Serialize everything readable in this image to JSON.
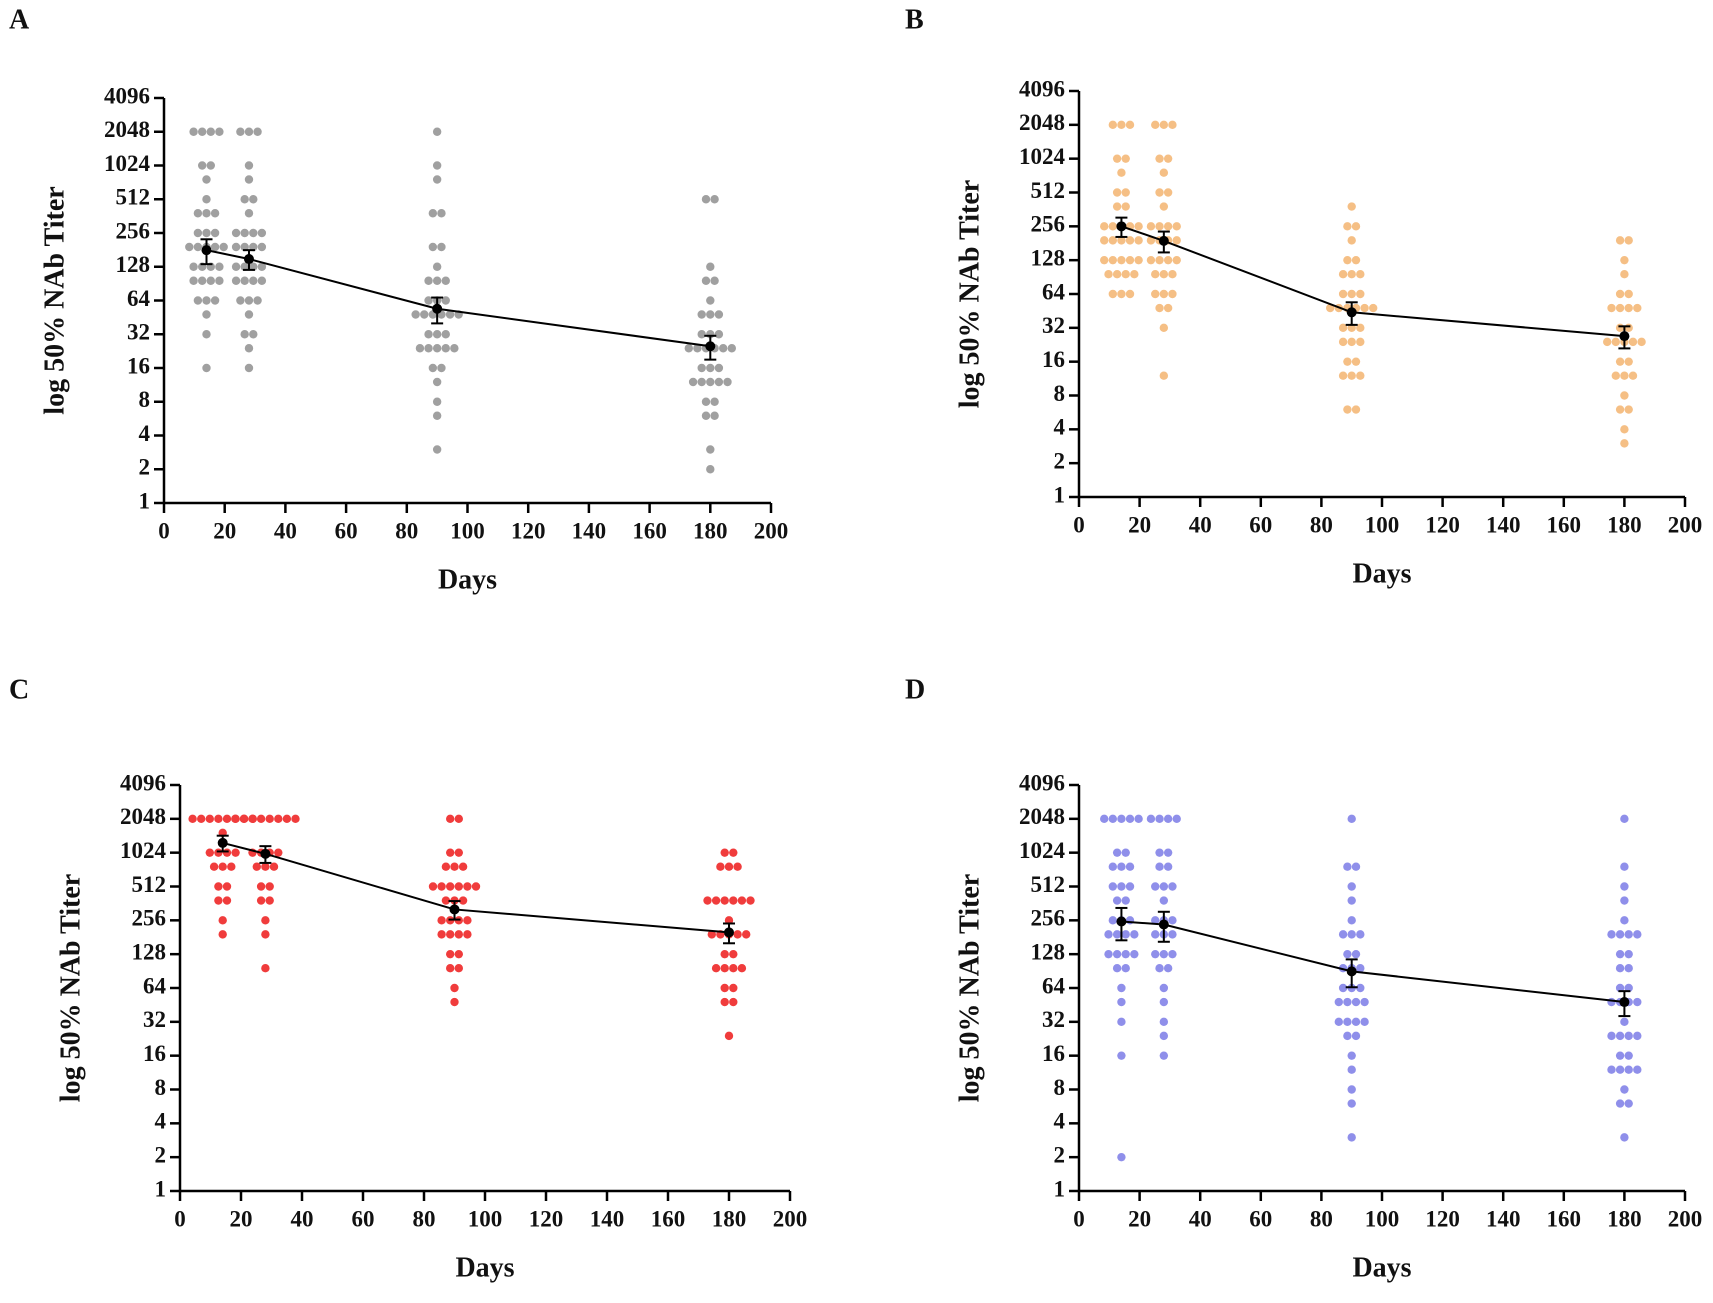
{
  "chart_data": [
    {
      "type": "scatter",
      "panel": "A",
      "ylabel": "log 50% NAb Titer",
      "xlabel": "Days",
      "color": "#a0a0a0",
      "log_scale": true,
      "xlim": [
        0,
        200
      ],
      "xticks": [
        0,
        20,
        40,
        60,
        80,
        100,
        120,
        140,
        160,
        180,
        200
      ],
      "ylim": [
        1,
        4096
      ],
      "yticks": [
        1,
        2,
        4,
        8,
        16,
        32,
        64,
        128,
        256,
        512,
        1024,
        2048,
        4096
      ],
      "groups": [
        {
          "x": 14,
          "values": [
            2048,
            2048,
            2048,
            2048,
            1024,
            1024,
            768,
            512,
            384,
            384,
            384,
            256,
            256,
            256,
            192,
            192,
            192,
            192,
            192,
            128,
            128,
            128,
            128,
            96,
            96,
            96,
            96,
            64,
            64,
            64,
            48,
            32,
            16
          ]
        },
        {
          "x": 28,
          "values": [
            2048,
            2048,
            2048,
            1024,
            768,
            512,
            512,
            384,
            256,
            256,
            256,
            256,
            192,
            192,
            192,
            192,
            128,
            128,
            128,
            128,
            96,
            96,
            96,
            96,
            64,
            64,
            64,
            48,
            32,
            32,
            24,
            16
          ]
        },
        {
          "x": 90,
          "values": [
            2048,
            1024,
            768,
            384,
            384,
            192,
            192,
            128,
            96,
            96,
            96,
            64,
            64,
            64,
            48,
            48,
            48,
            48,
            48,
            48,
            32,
            32,
            32,
            24,
            24,
            24,
            24,
            24,
            16,
            16,
            12,
            8,
            6,
            3
          ]
        },
        {
          "x": 180,
          "values": [
            512,
            512,
            128,
            96,
            96,
            64,
            48,
            48,
            48,
            32,
            32,
            32,
            24,
            24,
            24,
            24,
            24,
            24,
            16,
            16,
            16,
            12,
            12,
            12,
            12,
            12,
            8,
            8,
            6,
            6,
            3,
            2
          ]
        }
      ],
      "mean": {
        "x": [
          14,
          28,
          90,
          180
        ],
        "values": [
          180,
          150,
          54,
          25
        ],
        "errors": [
          45,
          30,
          14,
          6
        ]
      }
    },
    {
      "type": "scatter",
      "panel": "B",
      "ylabel": "log 50% NAb Titer",
      "xlabel": "Days",
      "color": "#f5bf85",
      "log_scale": true,
      "xlim": [
        0,
        200
      ],
      "xticks": [
        0,
        20,
        40,
        60,
        80,
        100,
        120,
        140,
        160,
        180,
        200
      ],
      "ylim": [
        1,
        4096
      ],
      "yticks": [
        1,
        2,
        4,
        8,
        16,
        32,
        64,
        128,
        256,
        512,
        1024,
        2048,
        4096
      ],
      "groups": [
        {
          "x": 14,
          "values": [
            2048,
            2048,
            2048,
            1024,
            1024,
            768,
            512,
            512,
            384,
            384,
            256,
            256,
            256,
            256,
            256,
            192,
            192,
            192,
            192,
            192,
            128,
            128,
            128,
            128,
            128,
            96,
            96,
            96,
            96,
            64,
            64,
            64
          ]
        },
        {
          "x": 28,
          "values": [
            2048,
            2048,
            2048,
            1024,
            1024,
            768,
            512,
            512,
            384,
            256,
            256,
            256,
            256,
            192,
            192,
            192,
            192,
            128,
            128,
            128,
            128,
            96,
            96,
            96,
            64,
            64,
            64,
            48,
            48,
            32,
            12
          ]
        },
        {
          "x": 90,
          "values": [
            384,
            256,
            256,
            192,
            128,
            128,
            96,
            96,
            96,
            64,
            64,
            64,
            48,
            48,
            48,
            48,
            48,
            48,
            32,
            32,
            32,
            24,
            24,
            24,
            16,
            16,
            12,
            12,
            12,
            6,
            6
          ]
        },
        {
          "x": 180,
          "values": [
            192,
            192,
            128,
            96,
            64,
            64,
            48,
            48,
            48,
            48,
            32,
            32,
            24,
            24,
            24,
            24,
            24,
            16,
            16,
            12,
            12,
            12,
            8,
            6,
            6,
            4,
            3
          ]
        }
      ],
      "mean": {
        "x": [
          14,
          28,
          90,
          180
        ],
        "values": [
          256,
          190,
          44,
          27
        ],
        "errors": [
          50,
          40,
          10,
          6
        ]
      }
    },
    {
      "type": "scatter",
      "panel": "C",
      "ylabel": "log 50% NAb Titer",
      "xlabel": "Days",
      "color": "#f03c3c",
      "log_scale": true,
      "xlim": [
        0,
        200
      ],
      "xticks": [
        0,
        20,
        40,
        60,
        80,
        100,
        120,
        140,
        160,
        180,
        200
      ],
      "ylim": [
        1,
        4096
      ],
      "yticks": [
        1,
        2,
        4,
        8,
        16,
        32,
        64,
        128,
        256,
        512,
        1024,
        2048,
        4096
      ],
      "groups": [
        {
          "x": 14,
          "values": [
            2048,
            2048,
            2048,
            2048,
            2048,
            2048,
            2048,
            2048,
            1536,
            1024,
            1024,
            1024,
            1024,
            768,
            768,
            768,
            512,
            512,
            384,
            384,
            256,
            192
          ]
        },
        {
          "x": 28,
          "values": [
            2048,
            2048,
            2048,
            2048,
            2048,
            2048,
            2048,
            2048,
            1024,
            1024,
            1024,
            1024,
            768,
            768,
            768,
            512,
            512,
            384,
            384,
            256,
            192,
            96
          ]
        },
        {
          "x": 90,
          "values": [
            2048,
            2048,
            1024,
            1024,
            768,
            768,
            768,
            512,
            512,
            512,
            512,
            512,
            512,
            384,
            384,
            384,
            256,
            256,
            256,
            256,
            192,
            192,
            192,
            192,
            128,
            128,
            96,
            96,
            64,
            48
          ]
        },
        {
          "x": 180,
          "values": [
            1024,
            1024,
            768,
            768,
            768,
            384,
            384,
            384,
            384,
            384,
            384,
            256,
            192,
            192,
            192,
            192,
            192,
            128,
            128,
            96,
            96,
            96,
            96,
            64,
            64,
            48,
            48,
            24
          ]
        }
      ],
      "mean": {
        "x": [
          14,
          28,
          90,
          180
        ],
        "values": [
          1250,
          1000,
          320,
          200
        ],
        "errors": [
          200,
          170,
          60,
          40
        ]
      }
    },
    {
      "type": "scatter",
      "panel": "D",
      "ylabel": "log 50% NAb Titer",
      "xlabel": "Days",
      "color": "#8f8fea",
      "log_scale": true,
      "xlim": [
        0,
        200
      ],
      "xticks": [
        0,
        20,
        40,
        60,
        80,
        100,
        120,
        140,
        160,
        180,
        200
      ],
      "ylim": [
        1,
        4096
      ],
      "yticks": [
        1,
        2,
        4,
        8,
        16,
        32,
        64,
        128,
        256,
        512,
        1024,
        2048,
        4096
      ],
      "groups": [
        {
          "x": 14,
          "values": [
            2048,
            2048,
            2048,
            2048,
            2048,
            1024,
            1024,
            768,
            768,
            768,
            512,
            512,
            512,
            384,
            384,
            256,
            256,
            256,
            192,
            192,
            192,
            192,
            128,
            128,
            128,
            128,
            96,
            96,
            64,
            48,
            32,
            16,
            2
          ]
        },
        {
          "x": 28,
          "values": [
            2048,
            2048,
            2048,
            2048,
            1024,
            1024,
            768,
            768,
            512,
            512,
            512,
            384,
            256,
            256,
            256,
            192,
            192,
            192,
            128,
            128,
            128,
            96,
            96,
            64,
            48,
            32,
            24,
            16
          ]
        },
        {
          "x": 90,
          "values": [
            2048,
            768,
            768,
            512,
            384,
            256,
            192,
            192,
            192,
            128,
            128,
            96,
            96,
            96,
            64,
            64,
            64,
            48,
            48,
            48,
            48,
            32,
            32,
            32,
            32,
            24,
            24,
            16,
            12,
            8,
            6,
            3
          ]
        },
        {
          "x": 180,
          "values": [
            2048,
            768,
            512,
            384,
            256,
            192,
            192,
            192,
            192,
            128,
            128,
            96,
            96,
            64,
            64,
            48,
            48,
            48,
            48,
            32,
            24,
            24,
            24,
            24,
            16,
            16,
            12,
            12,
            12,
            12,
            8,
            6,
            6,
            3
          ]
        }
      ],
      "mean": {
        "x": [
          14,
          28,
          90,
          180
        ],
        "values": [
          250,
          235,
          90,
          48
        ],
        "errors": [
          80,
          70,
          25,
          12
        ]
      }
    }
  ]
}
